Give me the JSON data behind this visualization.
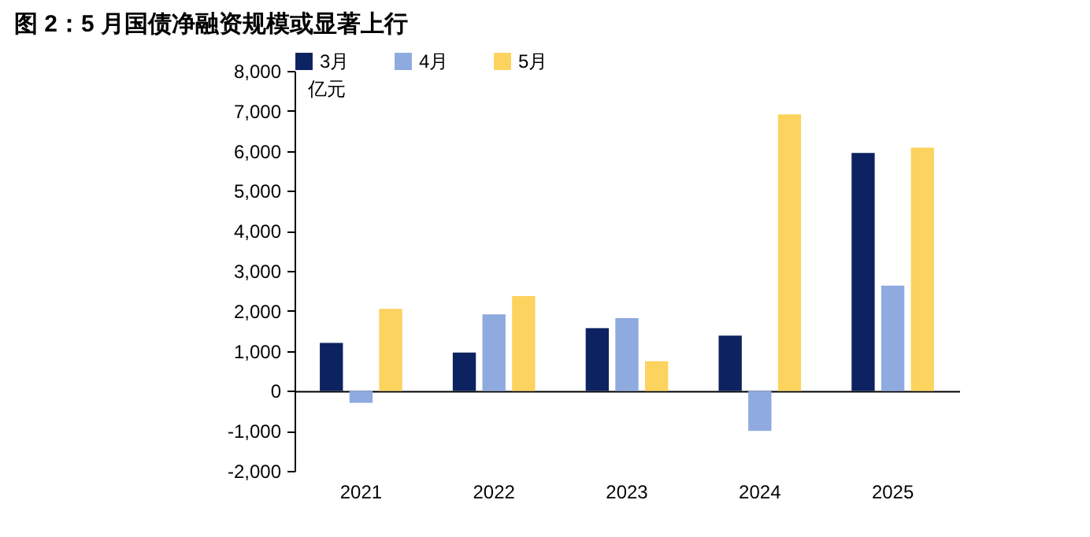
{
  "chart_data": {
    "type": "bar",
    "title": "图 2：5 月国债净融资规模或显著上行",
    "ylabel": "亿元",
    "categories": [
      "2021",
      "2022",
      "2023",
      "2024",
      "2025"
    ],
    "series": [
      {
        "name": "3月",
        "color": "#0d2260",
        "values": [
          1200,
          960,
          1570,
          1380,
          5950
        ]
      },
      {
        "name": "4月",
        "color": "#8eaadf",
        "values": [
          -300,
          1910,
          1820,
          -1000,
          2630
        ]
      },
      {
        "name": "5月",
        "color": "#fcd35f",
        "values": [
          2050,
          2370,
          740,
          6910,
          6080
        ]
      }
    ],
    "ylim": [
      -2000,
      8000
    ],
    "yticks": [
      {
        "value": -2000,
        "label": "-2,000"
      },
      {
        "value": -1000,
        "label": "-1,000"
      },
      0,
      {
        "value": 1000,
        "label": "1,000"
      },
      {
        "value": 2000,
        "label": "2,000"
      },
      {
        "value": 3000,
        "label": "3,000"
      },
      {
        "value": 4000,
        "label": "4,000"
      },
      {
        "value": 5000,
        "label": "5,000"
      },
      {
        "value": 6000,
        "label": "6,000"
      },
      {
        "value": 7000,
        "label": "7,000"
      },
      {
        "value": 8000,
        "label": "8,000"
      }
    ],
    "legend": "top"
  }
}
